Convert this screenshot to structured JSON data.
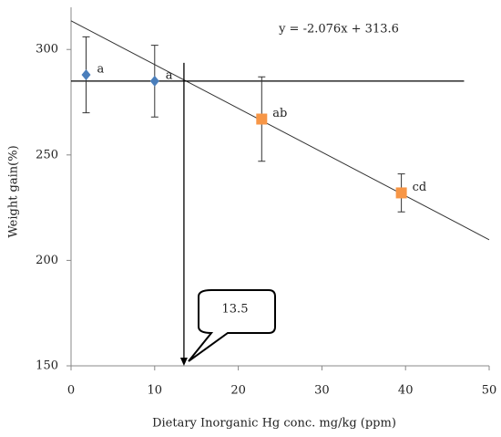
{
  "chart_data": {
    "type": "scatter",
    "xlabel": "Dietary Inorganic Hg conc. mg/kg (ppm)",
    "ylabel": "Weight gain(%)",
    "xlim": [
      0,
      50
    ],
    "xticks": [
      0,
      10,
      20,
      30,
      40,
      50
    ],
    "ylim": [
      150,
      320
    ],
    "yticks": [
      150,
      200,
      250,
      300
    ],
    "series": [
      {
        "color": "#4a7ebb",
        "marker": "diamond",
        "x": [
          1.8,
          10
        ],
        "values": [
          288,
          285
        ],
        "errors": [
          18,
          17
        ],
        "labels": [
          "a",
          "a"
        ]
      },
      {
        "color": "#f79646",
        "marker": "square",
        "x": [
          22.8,
          39.5
        ],
        "values": [
          267,
          232
        ],
        "errors": [
          20,
          9
        ],
        "labels": [
          "ab",
          "cd"
        ]
      }
    ],
    "regression": {
      "slope": -2.076,
      "intercept": 313.6,
      "xlim": [
        0,
        50
      ],
      "label": "y = -2.076x + 313.6"
    },
    "hline": {
      "y": 285,
      "xlim": [
        0,
        47
      ]
    },
    "vline": {
      "x": 13.5
    }
  }
}
